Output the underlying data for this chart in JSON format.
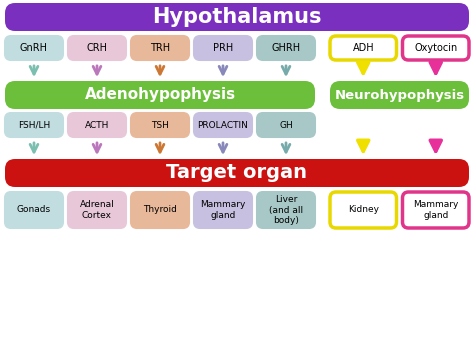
{
  "title": "Hypothalamus",
  "title_bg": "#7b2fbe",
  "adenohypo_label": "Adenohypophysis",
  "neurohypo_label": "Neurohypophysis",
  "target_label": "Target organ",
  "target_bg": "#cc1111",
  "green_bg": "#6bbf3a",
  "top_hormones": [
    {
      "label": "GnRH",
      "bg": "#c2dde0"
    },
    {
      "label": "CRH",
      "bg": "#e8c8d8"
    },
    {
      "label": "TRH",
      "bg": "#e8b89a"
    },
    {
      "label": "PRH",
      "bg": "#c8c0e0"
    },
    {
      "label": "GHRH",
      "bg": "#a8c8c8"
    }
  ],
  "neuro_hormones": [
    {
      "label": "ADH",
      "bg": "#ffffff",
      "border": "#e8d800"
    },
    {
      "label": "Oxytocin",
      "bg": "#ffffff",
      "border": "#e0358a"
    }
  ],
  "top_arrow_colors": [
    "#7abfb0",
    "#bb77bb",
    "#cc7733",
    "#8888bb",
    "#77aaaa"
  ],
  "neuro_arrow_colors_top": [
    "#f0e000",
    "#e8309a"
  ],
  "mid_hormones": [
    {
      "label": "FSH/LH",
      "bg": "#c2dde0"
    },
    {
      "label": "ACTH",
      "bg": "#e8c8d8"
    },
    {
      "label": "TSH",
      "bg": "#e8b89a"
    },
    {
      "label": "PROLACTIN",
      "bg": "#c8c0e0"
    },
    {
      "label": "GH",
      "bg": "#a8c8c8"
    }
  ],
  "mid_arrow_colors": [
    "#7abfb0",
    "#bb77bb",
    "#cc7733",
    "#8888bb",
    "#77aaaa"
  ],
  "neuro_arrow_colors_mid": [
    "#f0e000",
    "#e8309a"
  ],
  "bottom_organs": [
    {
      "label": "Gonads",
      "bg": "#c2dde0",
      "border": "#c2dde0"
    },
    {
      "label": "Adrenal\nCortex",
      "bg": "#e8c8d8",
      "border": "#e8c8d8"
    },
    {
      "label": "Thyroid",
      "bg": "#e8b89a",
      "border": "#e8b89a"
    },
    {
      "label": "Mammary\ngland",
      "bg": "#c8c0e0",
      "border": "#c8c0e0"
    },
    {
      "label": "Liver\n(and all\nbody)",
      "bg": "#a8c8c8",
      "border": "#a8c8c8"
    },
    {
      "label": "Kidney",
      "bg": "#ffffff",
      "border": "#e8d800"
    },
    {
      "label": "Mammary\ngland",
      "bg": "#ffffff",
      "border": "#e0358a"
    }
  ],
  "bg_color": "#ffffff"
}
